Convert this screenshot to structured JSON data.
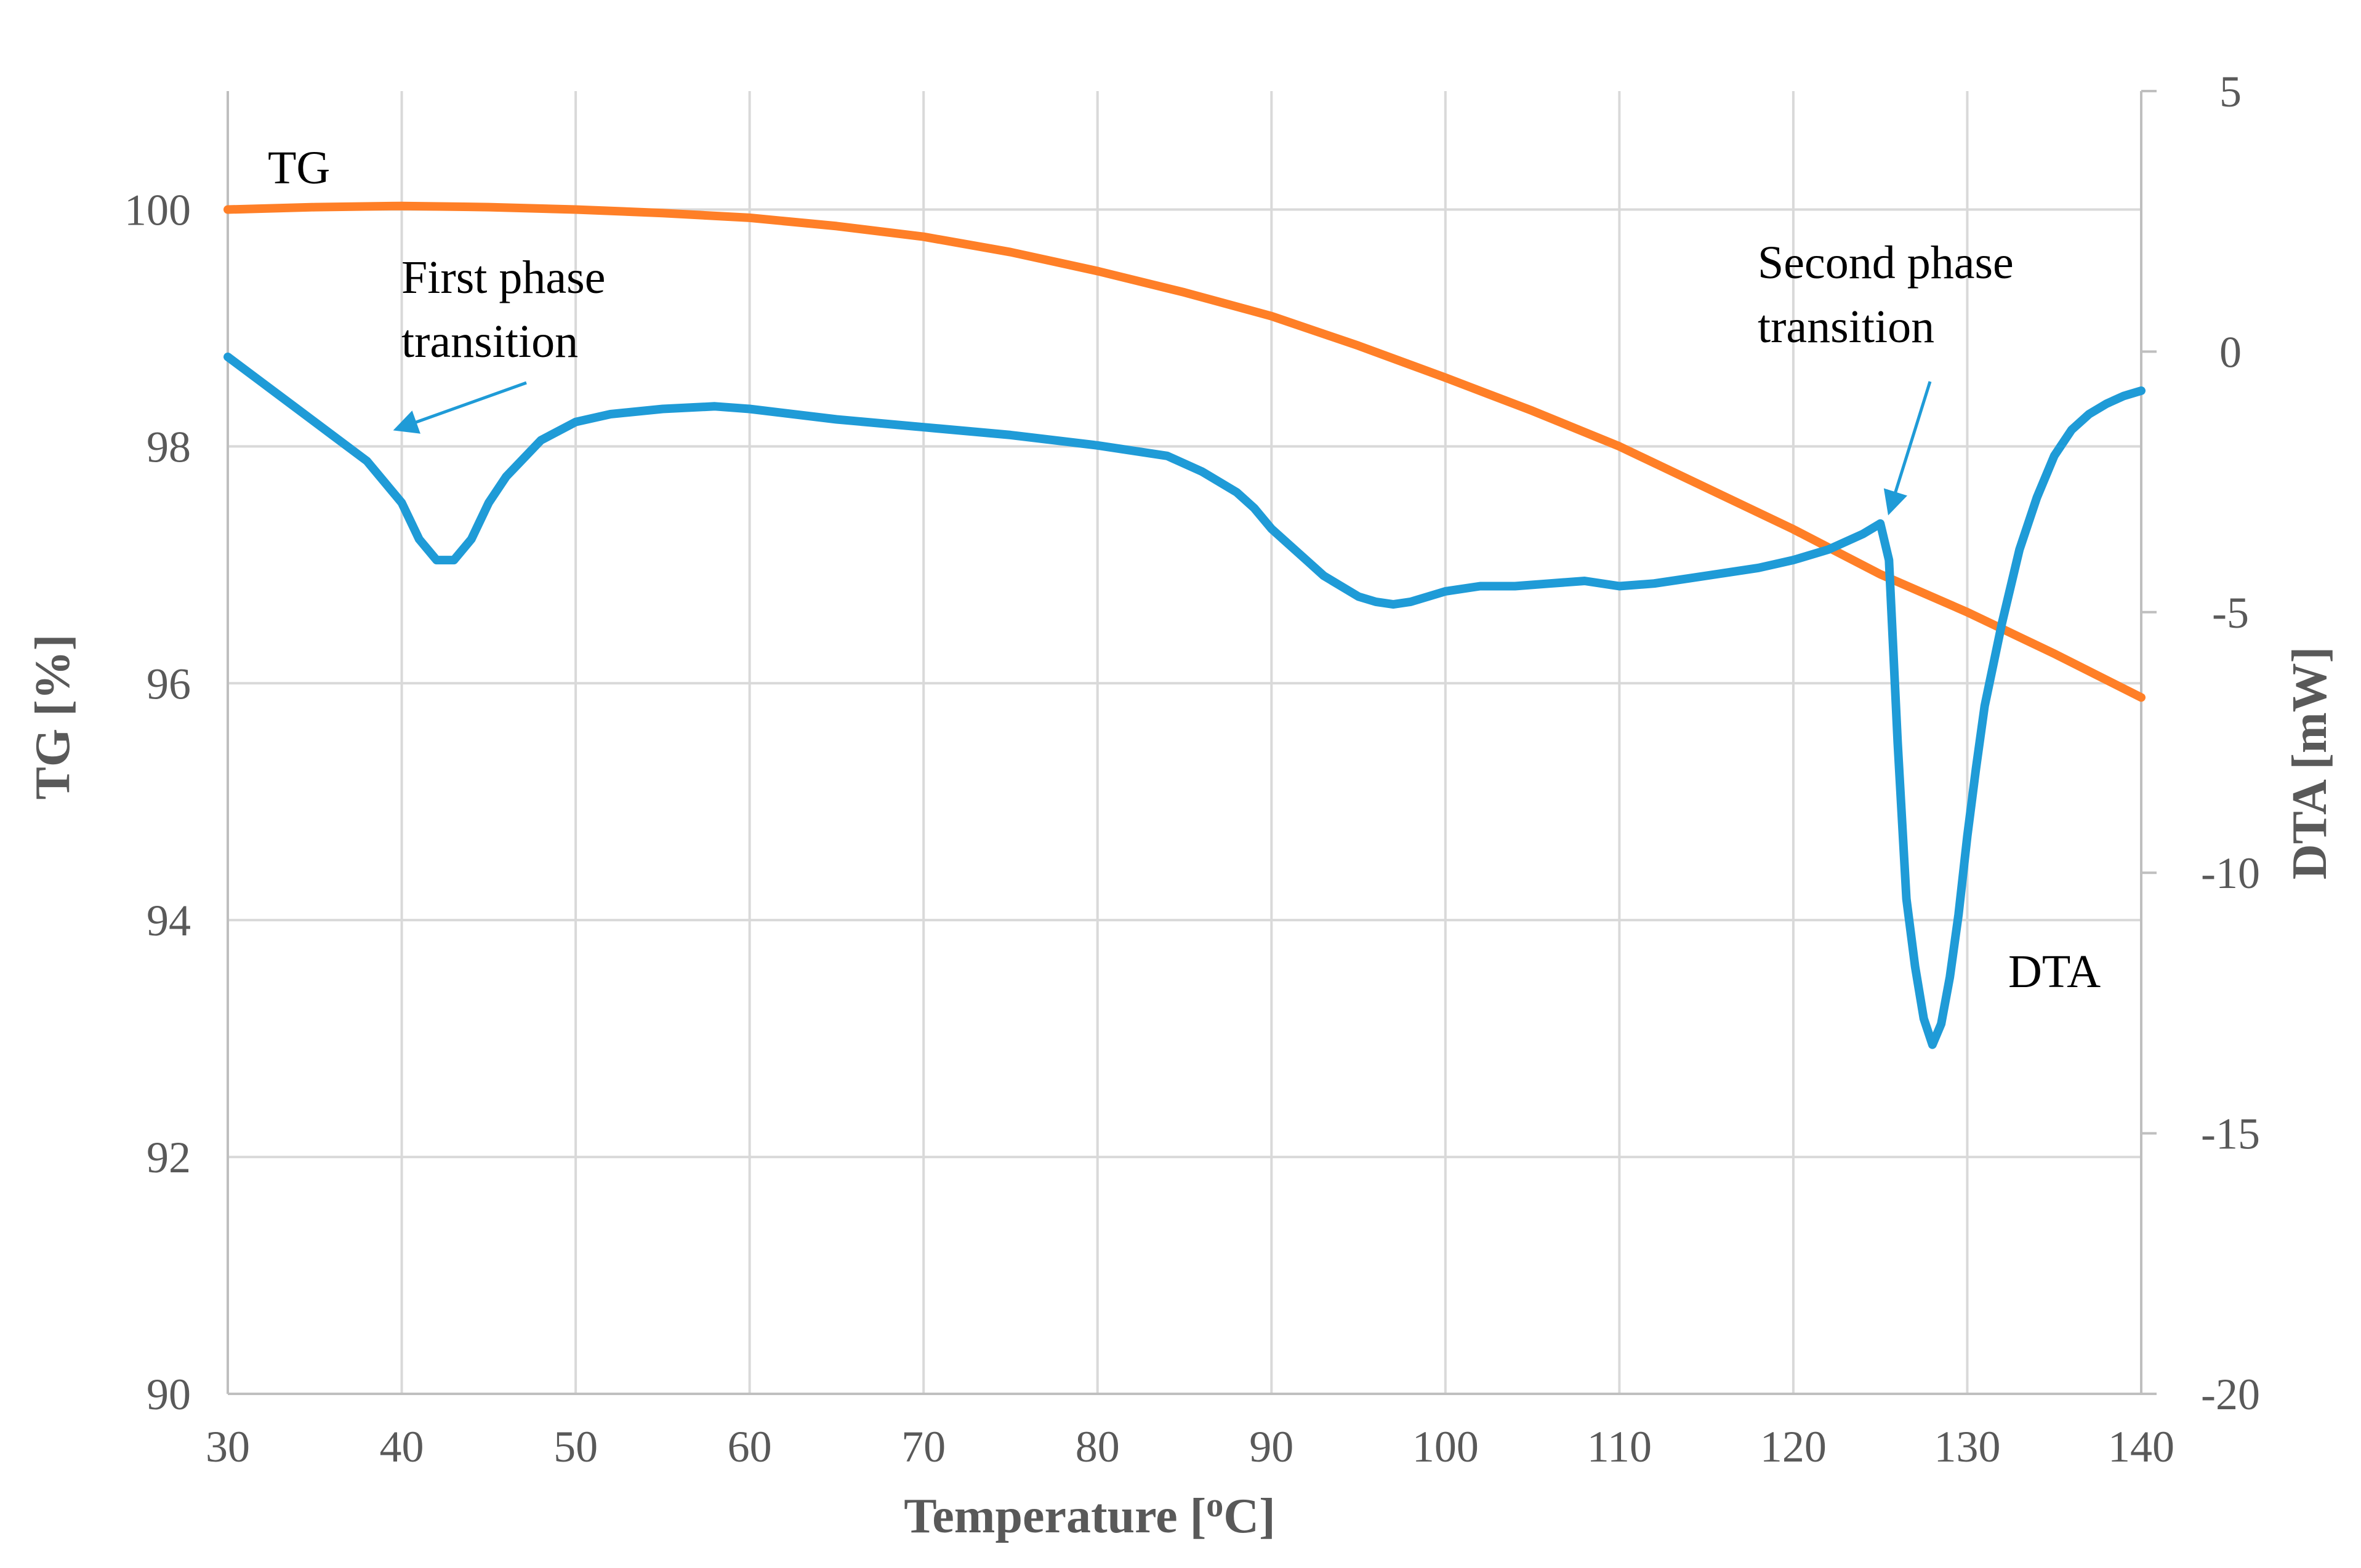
{
  "chart_data": {
    "type": "line",
    "xlabel_main": "Temperature [",
    "xlabel_sup": "o",
    "xlabel_end": "C]",
    "ylabel_left": "TG [%]",
    "ylabel_right": "DTA [mW]",
    "xlim": [
      30,
      140
    ],
    "ylim_left": [
      90,
      101
    ],
    "ylim_right": [
      -20,
      5
    ],
    "x_ticks": [
      "30",
      "40",
      "50",
      "60",
      "70",
      "80",
      "90",
      "100",
      "110",
      "120",
      "130",
      "140"
    ],
    "y_left_ticks": [
      "90",
      "92",
      "94",
      "96",
      "98",
      "100"
    ],
    "y_right_ticks": [
      "-20",
      "-15",
      "-10",
      "-5",
      "0",
      "5"
    ],
    "grid": true,
    "colors": {
      "TG": "#ff7f27",
      "DTA": "#1f9bd7"
    },
    "series": [
      {
        "name": "TG",
        "axis": "left",
        "x": [
          30,
          35,
          40,
          45,
          50,
          55,
          60,
          65,
          70,
          75,
          80,
          85,
          90,
          95,
          100,
          105,
          110,
          115,
          120,
          125,
          130,
          135,
          140
        ],
        "y": [
          100.0,
          100.02,
          100.03,
          100.02,
          100.0,
          99.97,
          99.93,
          99.86,
          99.77,
          99.64,
          99.48,
          99.3,
          99.1,
          98.85,
          98.58,
          98.3,
          98.0,
          97.65,
          97.3,
          96.92,
          96.6,
          96.25,
          95.88
        ]
      },
      {
        "name": "DTA",
        "axis": "right",
        "x": [
          30,
          32,
          34,
          36,
          38,
          40,
          41,
          42,
          43,
          44,
          45,
          46,
          48,
          50,
          52,
          55,
          58,
          60,
          65,
          70,
          75,
          80,
          82,
          84,
          86,
          88,
          89,
          90,
          91,
          92,
          93,
          94,
          95,
          96,
          97,
          98,
          99,
          100,
          102,
          104,
          106,
          108,
          110,
          112,
          114,
          116,
          118,
          120,
          122,
          124,
          125,
          125.5,
          126,
          126.5,
          127,
          127.5,
          128,
          128.5,
          129,
          129.5,
          130,
          130.5,
          131,
          132,
          133,
          134,
          135,
          136,
          137,
          138,
          139,
          140
        ],
        "y": [
          -0.1,
          -0.6,
          -1.1,
          -1.6,
          -2.1,
          -2.9,
          -3.6,
          -4.0,
          -4.0,
          -3.6,
          -2.9,
          -2.4,
          -1.7,
          -1.35,
          -1.2,
          -1.1,
          -1.05,
          -1.1,
          -1.3,
          -1.45,
          -1.6,
          -1.8,
          -1.9,
          -2.0,
          -2.3,
          -2.7,
          -3.0,
          -3.4,
          -3.7,
          -4.0,
          -4.3,
          -4.5,
          -4.7,
          -4.8,
          -4.85,
          -4.8,
          -4.7,
          -4.6,
          -4.5,
          -4.5,
          -4.45,
          -4.4,
          -4.5,
          -4.45,
          -4.35,
          -4.25,
          -4.15,
          -4.0,
          -3.8,
          -3.5,
          -3.3,
          -4.0,
          -7.5,
          -10.5,
          -11.8,
          -12.8,
          -13.3,
          -12.9,
          -12.0,
          -10.8,
          -9.3,
          -8.0,
          -6.8,
          -5.2,
          -3.8,
          -2.8,
          -2.0,
          -1.5,
          -1.2,
          -1.0,
          -0.85,
          -0.75
        ]
      }
    ],
    "annotations": {
      "tg_label": "TG",
      "dta_label": "DTA",
      "first_line1": "First phase",
      "first_line2": "transition",
      "second_line1": "Second phase",
      "second_line2": "transition"
    }
  }
}
